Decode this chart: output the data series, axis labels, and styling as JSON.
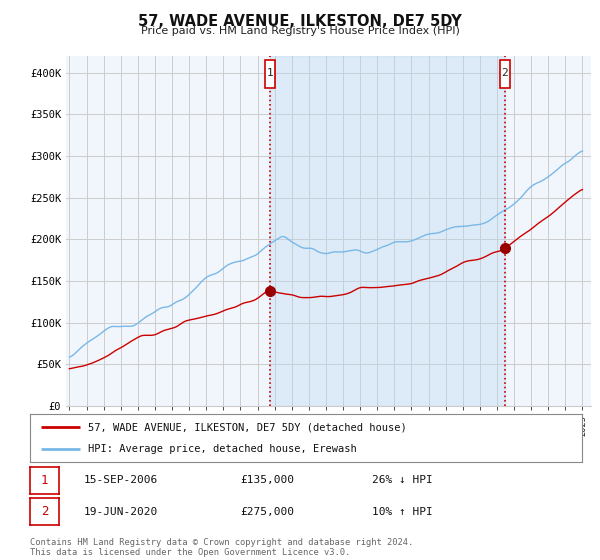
{
  "title": "57, WADE AVENUE, ILKESTON, DE7 5DY",
  "subtitle": "Price paid vs. HM Land Registry's House Price Index (HPI)",
  "ylim": [
    0,
    420000
  ],
  "yticks": [
    0,
    50000,
    100000,
    150000,
    200000,
    250000,
    300000,
    350000,
    400000
  ],
  "ytick_labels": [
    "£0",
    "£50K",
    "£100K",
    "£150K",
    "£200K",
    "£250K",
    "£300K",
    "£350K",
    "£400K"
  ],
  "x_start_year": 1995,
  "x_end_year": 2025,
  "hpi_color": "#7ab8e8",
  "price_color": "#cc0000",
  "vline_color": "#cc0000",
  "background_color": "#ffffff",
  "chart_bg_color": "#f0f6fc",
  "shade_color": "#ddeeff",
  "grid_color": "#cccccc",
  "t1_year": 2006.71,
  "t1_price": 135000,
  "t2_year": 2020.46,
  "t2_price": 275000,
  "legend_line1": "57, WADE AVENUE, ILKESTON, DE7 5DY (detached house)",
  "legend_line2": "HPI: Average price, detached house, Erewash",
  "transaction1": {
    "date_str": "15-SEP-2006",
    "price_str": "£135,000",
    "hpi_str": "26% ↓ HPI"
  },
  "transaction2": {
    "date_str": "19-JUN-2020",
    "price_str": "£275,000",
    "hpi_str": "10% ↑ HPI"
  },
  "footnote": "Contains HM Land Registry data © Crown copyright and database right 2024.\nThis data is licensed under the Open Government Licence v3.0."
}
